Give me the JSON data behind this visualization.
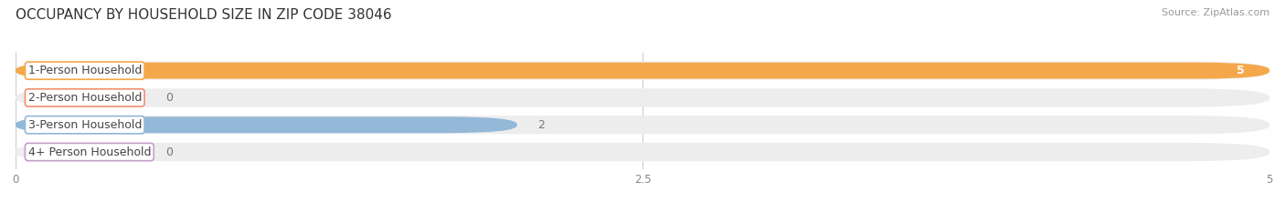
{
  "title": "OCCUPANCY BY HOUSEHOLD SIZE IN ZIP CODE 38046",
  "source": "Source: ZipAtlas.com",
  "categories": [
    "1-Person Household",
    "2-Person Household",
    "3-Person Household",
    "4+ Person Household"
  ],
  "values": [
    5,
    0,
    2,
    0
  ],
  "bar_colors": [
    "#F5A84B",
    "#F09070",
    "#93B8D8",
    "#C4A0C8"
  ],
  "bar_bg_color": "#EDEDEE",
  "xlim": [
    0,
    5
  ],
  "xticks": [
    0,
    2.5,
    5
  ],
  "title_fontsize": 11,
  "source_fontsize": 8,
  "label_fontsize": 9,
  "value_fontsize": 9,
  "background_color": "#FFFFFF",
  "grid_color": "#CCCCCC"
}
